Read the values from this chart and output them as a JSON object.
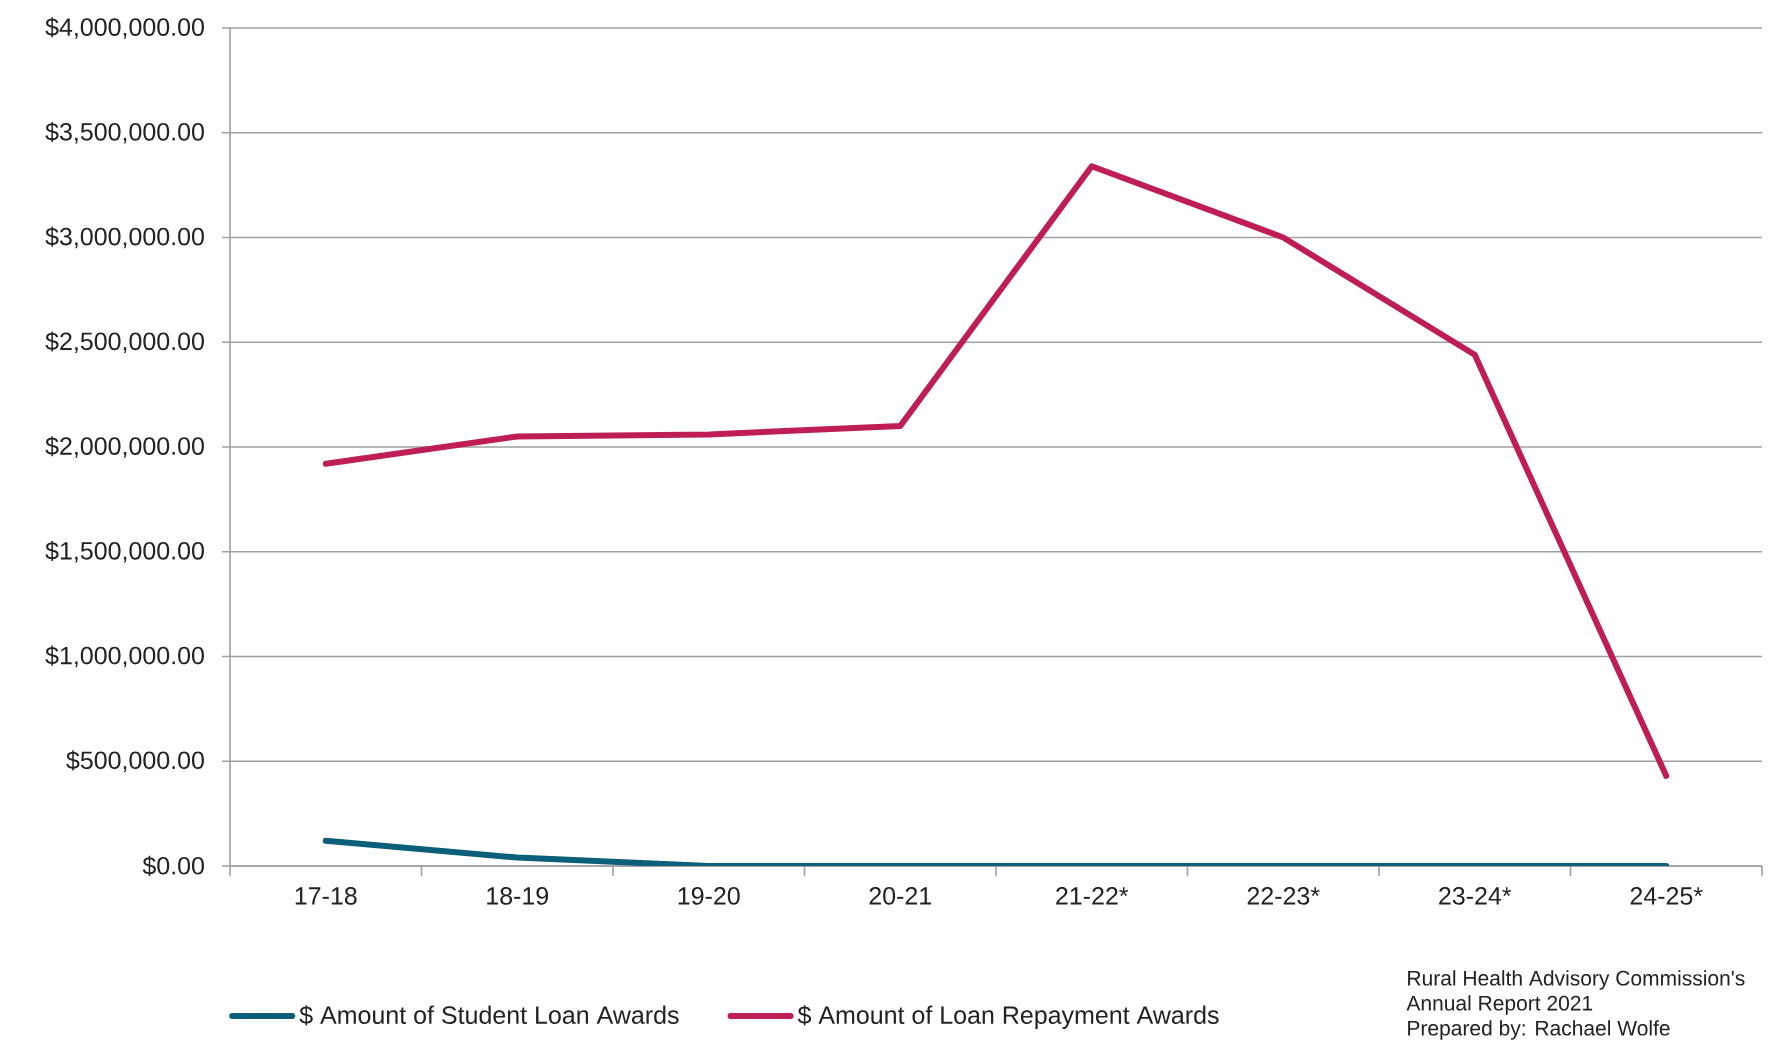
{
  "chart_data": {
    "type": "line",
    "categories": [
      "17-18",
      "18-19",
      "19-20",
      "20-21",
      "21-22*",
      "22-23*",
      "23-24*",
      "24-25*"
    ],
    "series": [
      {
        "name": "$ Amount of Student Loan Awards",
        "color": "#0b5f7a",
        "values": [
          120000,
          40000,
          0,
          0,
          0,
          0,
          0,
          0
        ]
      },
      {
        "name": "$ Amount of Loan Repayment Awards",
        "color": "#be1e55",
        "values": [
          1920000,
          2050000,
          2060000,
          2100000,
          3340000,
          3000000,
          2440000,
          430000
        ]
      }
    ],
    "ylim": [
      0,
      4000000
    ],
    "yticks": [
      {
        "value": 0,
        "label": "$0.00"
      },
      {
        "value": 500000,
        "label": "$500,000.00"
      },
      {
        "value": 1000000,
        "label": "$1,000,000.00"
      },
      {
        "value": 1500000,
        "label": "$1,500,000.00"
      },
      {
        "value": 2000000,
        "label": "$2,000,000.00"
      },
      {
        "value": 2500000,
        "label": "$2,500,000.00"
      },
      {
        "value": 3000000,
        "label": "$3,000,000.00"
      },
      {
        "value": 3500000,
        "label": "$3,500,000.00"
      },
      {
        "value": 4000000,
        "label": "$4,000,000.00"
      }
    ],
    "grid": "y",
    "legend": "bottom",
    "annotations": [
      "Rural Health Advisory Commission's",
      "Annual Report 2021",
      "Prepared by: Rachael Wolfe"
    ]
  }
}
